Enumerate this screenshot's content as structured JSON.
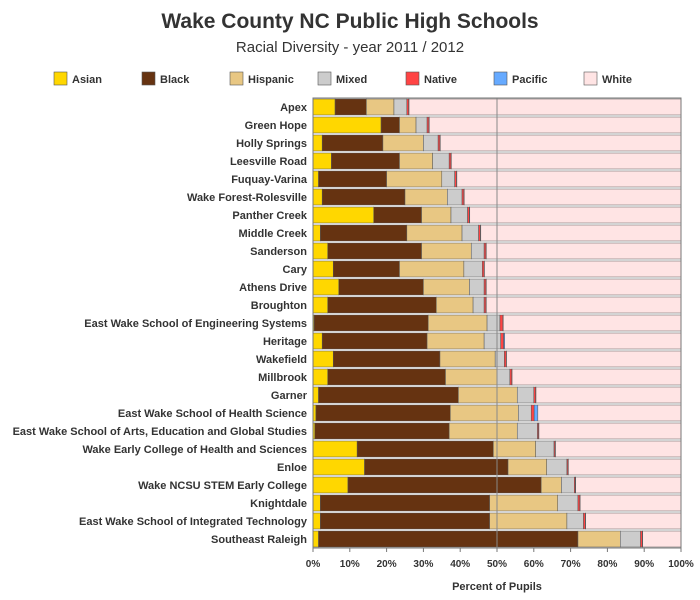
{
  "chart_data": {
    "type": "bar",
    "orientation": "horizontal",
    "stacked": true,
    "title": "Wake County NC Public High Schools",
    "subtitle": "Racial Diversity - year 2011 / 2012",
    "xlabel": "Percent of Pupils",
    "xlim": [
      0,
      100
    ],
    "xticks": [
      "0%",
      "10%",
      "20%",
      "30%",
      "40%",
      "50%",
      "60%",
      "70%",
      "80%",
      "90%",
      "100%"
    ],
    "reference_line": 50,
    "legend_position": "top",
    "categories": [
      "Apex",
      "Green Hope",
      "Holly Springs",
      "Leesville Road",
      "Fuquay-Varina",
      "Wake Forest-Rolesville",
      "Panther Creek",
      "Middle Creek",
      "Sanderson",
      "Cary",
      "Athens Drive",
      "Broughton",
      "East Wake School of Engineering Systems",
      "Heritage",
      "Wakefield",
      "Millbrook",
      "Garner",
      "East Wake   School of Health Science",
      "East Wake School of Arts, Education and Global Studies",
      "Wake Early College of Health and Sciences",
      "Enloe",
      "Wake NCSU STEM  Early College",
      "Knightdale",
      "East Wake School of Integrated Technology",
      "Southeast Raleigh"
    ],
    "series": [
      {
        "name": "Asian",
        "color": "#ffd700",
        "values": [
          6.0,
          18.5,
          2.5,
          5.0,
          1.5,
          2.5,
          16.5,
          2.0,
          4.0,
          5.5,
          7.0,
          4.0,
          0.3,
          2.5,
          5.5,
          4.0,
          1.5,
          0.8,
          0.5,
          12.0,
          14.0,
          9.5,
          2.0,
          2.0,
          1.5
        ]
      },
      {
        "name": "Black",
        "color": "#663311",
        "values": [
          8.5,
          5.0,
          16.5,
          18.5,
          18.5,
          22.5,
          13.0,
          23.5,
          25.5,
          18.0,
          23.0,
          29.5,
          31.0,
          28.5,
          29.0,
          32.0,
          38.0,
          36.5,
          36.5,
          37.0,
          39.0,
          52.5,
          46.0,
          46.0,
          70.5
        ]
      },
      {
        "name": "Hispanic",
        "color": "#e8c783",
        "values": [
          7.5,
          4.5,
          11.0,
          9.0,
          15.0,
          11.5,
          8.0,
          15.0,
          13.5,
          17.5,
          12.5,
          10.0,
          16.0,
          15.5,
          15.0,
          14.0,
          16.0,
          18.5,
          18.5,
          11.5,
          10.5,
          5.5,
          18.5,
          21.0,
          11.5
        ]
      },
      {
        "name": "Mixed",
        "color": "#cccccc",
        "values": [
          3.5,
          3.0,
          4.0,
          4.5,
          3.5,
          4.0,
          4.5,
          4.5,
          3.5,
          5.0,
          4.0,
          3.0,
          3.5,
          4.5,
          2.5,
          3.5,
          4.5,
          3.5,
          5.5,
          5.0,
          5.5,
          3.5,
          5.5,
          4.5,
          5.5
        ]
      },
      {
        "name": "Native",
        "color": "#ff4444",
        "values": [
          0.5,
          0.5,
          0.5,
          0.5,
          0.5,
          0.5,
          0.5,
          0.5,
          0.5,
          0.5,
          0.5,
          0.5,
          0.8,
          0.8,
          0.5,
          0.5,
          0.5,
          0.8,
          0.3,
          0.3,
          0.3,
          0.3,
          0.5,
          0.5,
          0.5
        ]
      },
      {
        "name": "Pacific",
        "color": "#66aaff",
        "values": [
          0.1,
          0.1,
          0.1,
          0.1,
          0.1,
          0.1,
          0.1,
          0.1,
          0.1,
          0.1,
          0.1,
          0.1,
          0.1,
          0.3,
          0.1,
          0.1,
          0.1,
          1.0,
          0.1,
          0.1,
          0.1,
          0.1,
          0.1,
          0.1,
          0.1
        ]
      },
      {
        "name": "White",
        "color": "#ffe4e4",
        "values": [
          73.9,
          68.4,
          65.4,
          62.4,
          60.9,
          58.9,
          57.4,
          54.4,
          52.9,
          53.4,
          52.9,
          52.9,
          48.3,
          47.9,
          47.4,
          45.9,
          39.4,
          38.9,
          38.6,
          34.1,
          30.6,
          28.6,
          27.4,
          25.9,
          10.4
        ]
      }
    ]
  }
}
